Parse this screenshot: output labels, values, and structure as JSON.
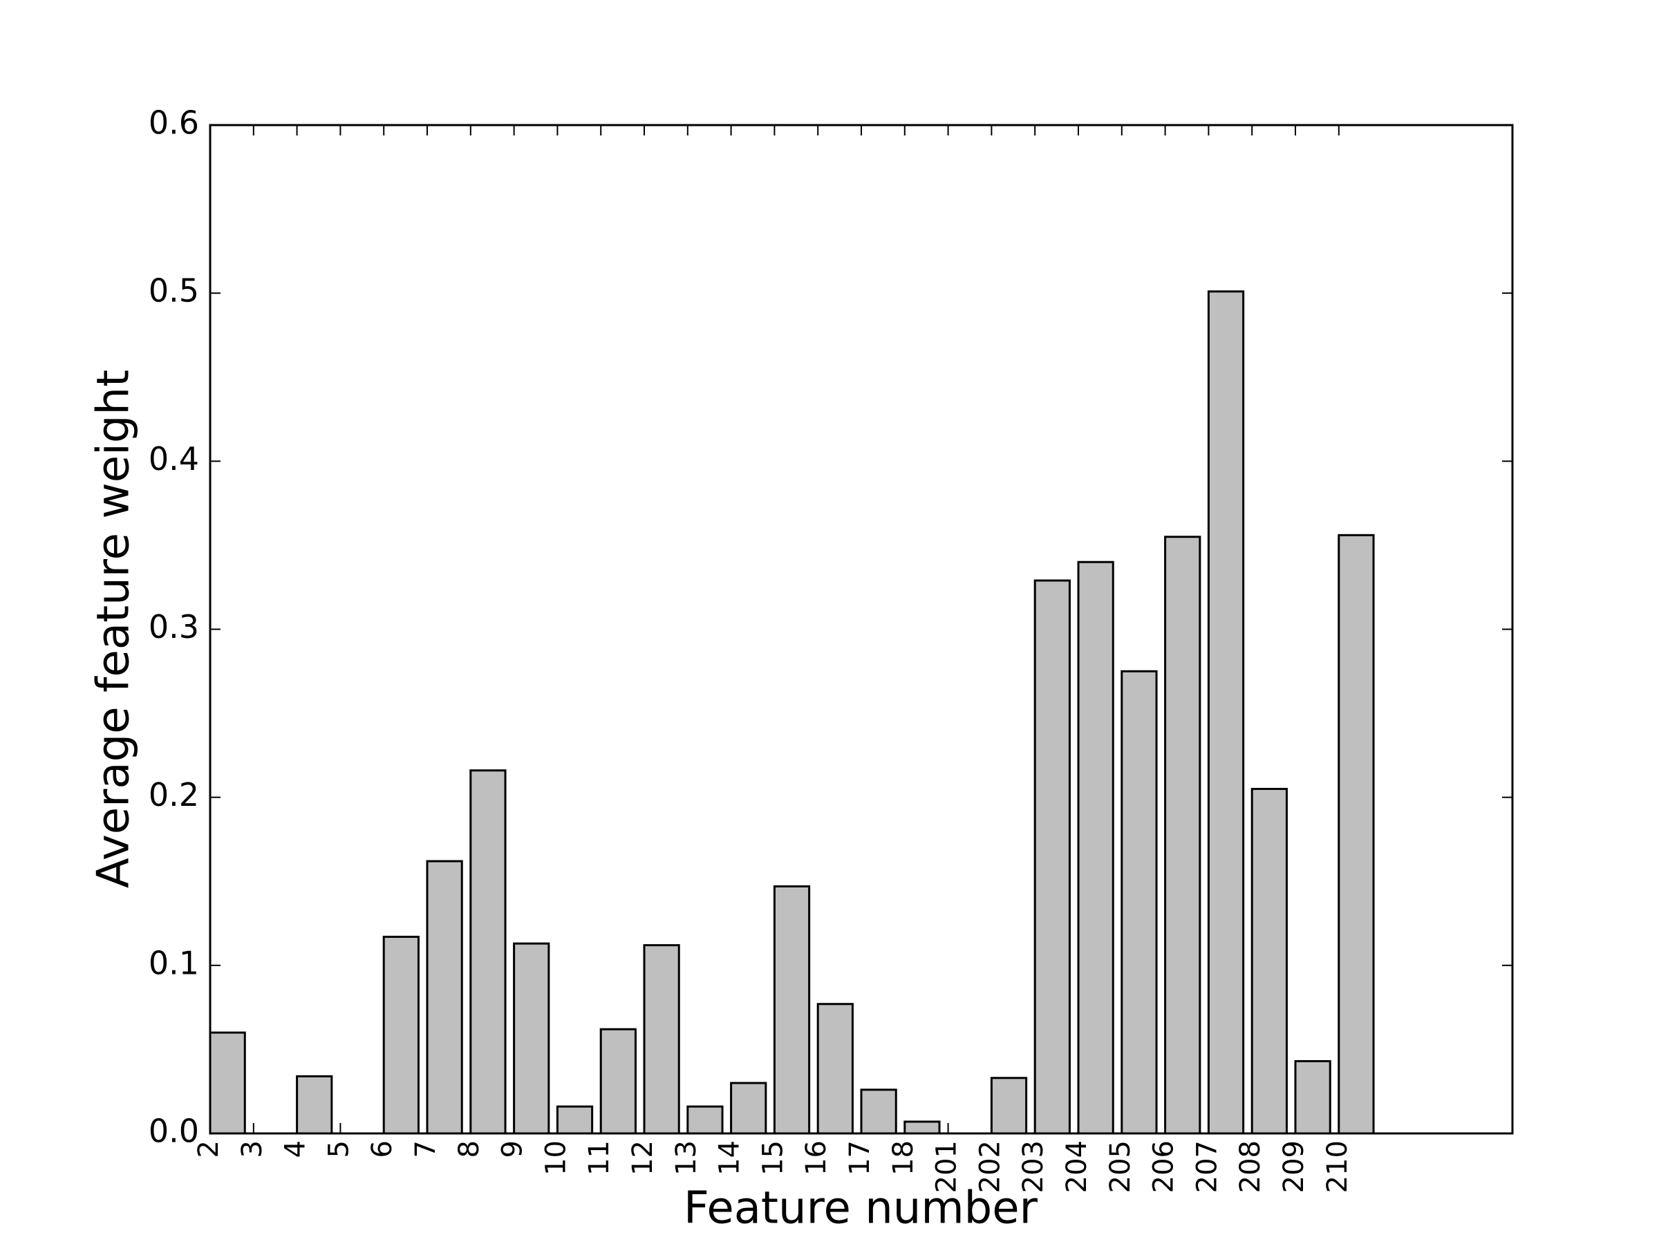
{
  "chart_data": {
    "type": "bar",
    "xlabel": "Feature number",
    "ylabel": "Average feature weight",
    "categories": [
      "2",
      "3",
      "4",
      "5",
      "6",
      "7",
      "8",
      "9",
      "10",
      "11",
      "12",
      "13",
      "14",
      "15",
      "16",
      "17",
      "18",
      "201",
      "202",
      "203",
      "204",
      "205",
      "206",
      "207",
      "208",
      "209",
      "210"
    ],
    "values": [
      0.06,
      0,
      0.034,
      0,
      0.117,
      0.162,
      0.216,
      0.113,
      0.016,
      0.062,
      0.112,
      0.016,
      0.03,
      0.147,
      0.077,
      0.026,
      0.007,
      0,
      0.033,
      0.329,
      0.34,
      0.275,
      0.355,
      0.501,
      0.205,
      0.043,
      0.356
    ],
    "color": "#bfbfbf",
    "ylim": [
      0,
      0.6
    ],
    "yticks": [
      {
        "value": 0,
        "label": "0.0"
      },
      0.1,
      0.2,
      0.3,
      0.4,
      0.5,
      0.6
    ],
    "grid": false
  }
}
